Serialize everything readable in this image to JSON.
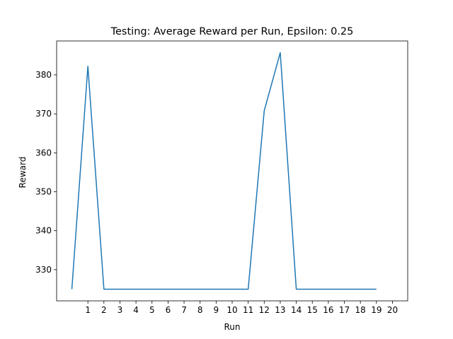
{
  "chart_data": {
    "type": "line",
    "title": "Testing: Average Reward per Run, Epsilon: 0.25",
    "xlabel": "Run",
    "ylabel": "Reward",
    "x": [
      0,
      1,
      2,
      3,
      4,
      5,
      6,
      7,
      8,
      9,
      10,
      11,
      12,
      13,
      14,
      15,
      16,
      17,
      18,
      19
    ],
    "series": [
      {
        "values": [
          325,
          382.2,
          325,
          325,
          325,
          325,
          325,
          325,
          325,
          325,
          325,
          325,
          370.8,
          385.7,
          325,
          325,
          325,
          325,
          325,
          325
        ],
        "color": "#1f77b4"
      }
    ],
    "xticks": [
      "1",
      "2",
      "3",
      "4",
      "5",
      "6",
      "7",
      "8",
      "9",
      "10",
      "11",
      "12",
      "13",
      "14",
      "15",
      "16",
      "17",
      "18",
      "19",
      "20"
    ],
    "yticks": [
      "330",
      "340",
      "350",
      "360",
      "370",
      "380"
    ],
    "xlim": [
      -0.95,
      20.95
    ],
    "ylim": [
      322.0,
      388.7
    ],
    "grid": false,
    "legend": "none"
  }
}
